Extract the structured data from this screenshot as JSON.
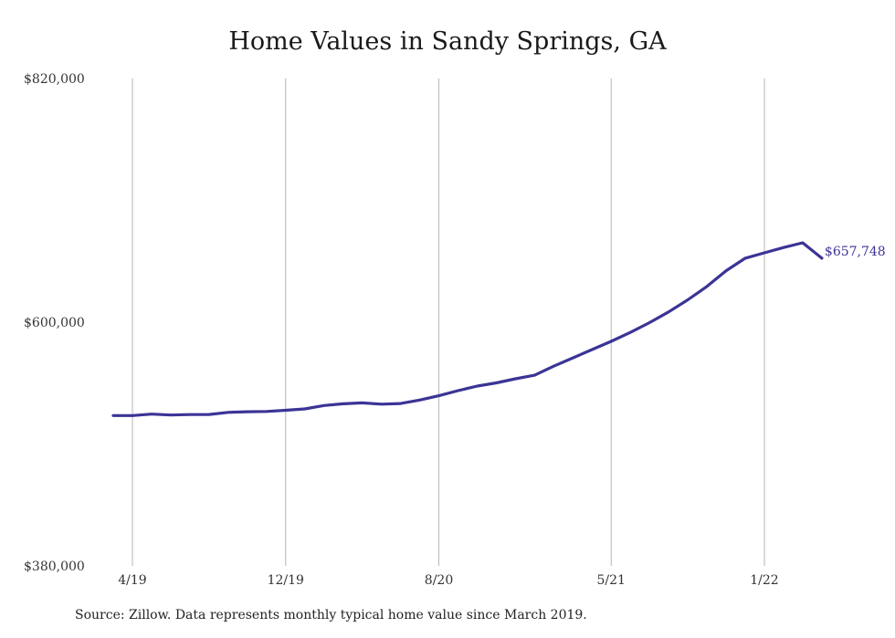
{
  "chart_data": {
    "type": "line",
    "title": "Home Values in Sandy Springs, GA",
    "xlabel": "",
    "ylabel": "",
    "ylim": [
      380000,
      820000
    ],
    "y_ticks": [
      "$820,000",
      "$600,000",
      "$380,000"
    ],
    "y_tick_values": [
      820000,
      600000,
      380000
    ],
    "x_ticks": [
      "4/19",
      "12/19",
      "8/20",
      "5/21",
      "1/22"
    ],
    "x_tick_months": [
      "2019-04",
      "2019-12",
      "2020-08",
      "2021-05",
      "2022-01"
    ],
    "x_range": [
      "2019-03",
      "2022-05"
    ],
    "grid": "vertical",
    "line_color": "#3b3496",
    "end_label": "$657,748",
    "x": [
      "2019-03",
      "2019-04",
      "2019-05",
      "2019-06",
      "2019-07",
      "2019-08",
      "2019-09",
      "2019-10",
      "2019-11",
      "2019-12",
      "2020-01",
      "2020-02",
      "2020-03",
      "2020-04",
      "2020-05",
      "2020-06",
      "2020-07",
      "2020-08",
      "2020-09",
      "2020-10",
      "2020-11",
      "2020-12",
      "2021-01",
      "2021-02",
      "2021-03",
      "2021-04",
      "2021-05",
      "2021-06",
      "2021-07",
      "2021-08",
      "2021-09",
      "2021-10",
      "2021-11",
      "2021-12",
      "2022-01",
      "2022-02",
      "2022-03",
      "2022-04"
    ],
    "series": [
      {
        "values": [
          515700,
          515700,
          517000,
          516200,
          516600,
          516700,
          518600,
          519200,
          519400,
          520500,
          521700,
          524800,
          526300,
          527200,
          526000,
          526600,
          529700,
          533600,
          538200,
          542300,
          545200,
          548900,
          552100,
          560300,
          567800,
          575300,
          582700,
          590800,
          599600,
          609300,
          620200,
          632300,
          646500,
          657800,
          662600,
          667400,
          671700,
          657748
        ]
      }
    ]
  },
  "source": "Source: Zillow. Data represents monthly typical home value since March 2019."
}
